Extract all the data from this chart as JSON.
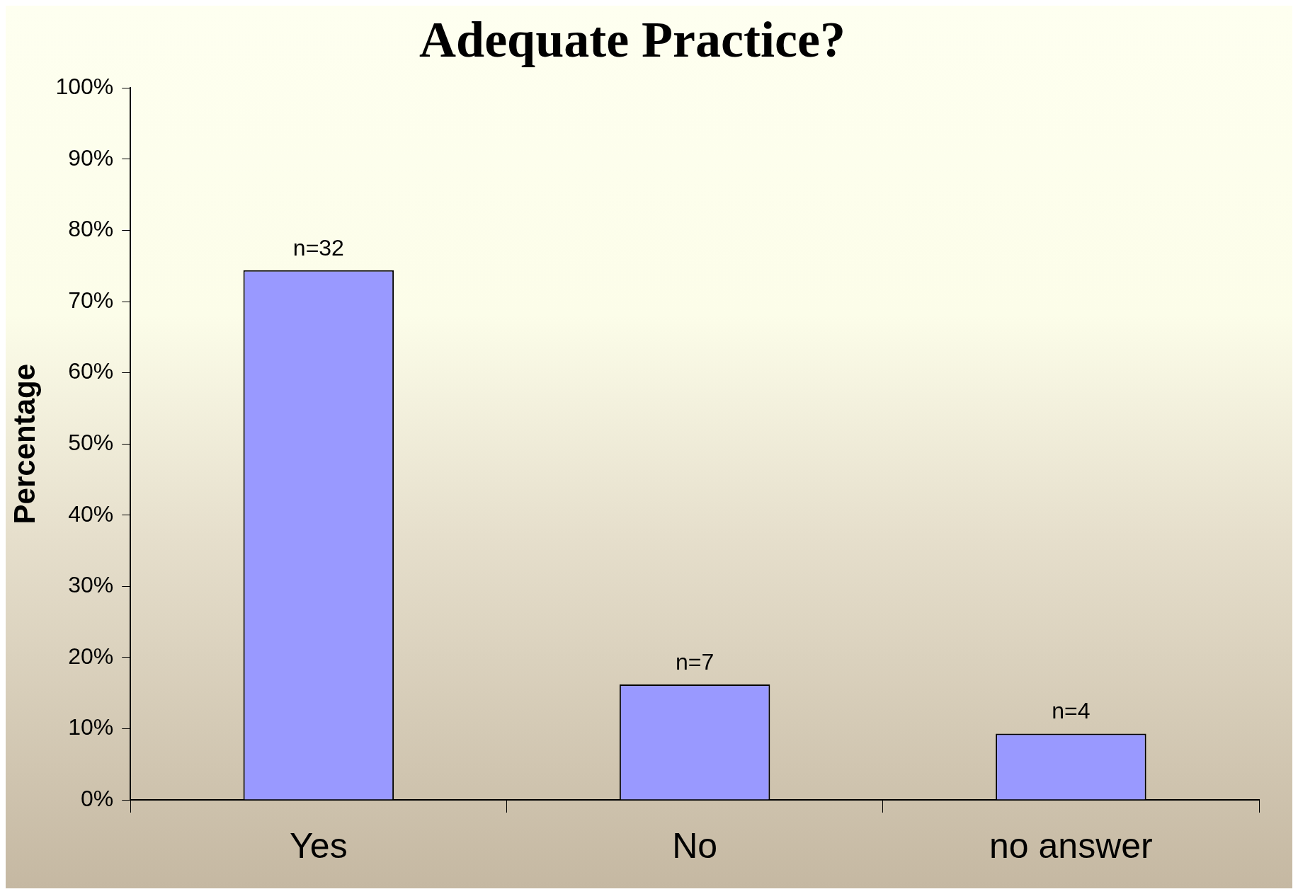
{
  "chart_data": {
    "type": "bar",
    "title": "Adequate Practice?",
    "ylabel": "Percentage",
    "categories": [
      "Yes",
      "No",
      "no answer"
    ],
    "values": [
      74.4,
      16.2,
      9.3
    ],
    "annotations": [
      {
        "text": "n=32",
        "x": "Yes",
        "y": 74.4
      },
      {
        "text": "n=7",
        "x": "No",
        "y": 16.2
      },
      {
        "text": "n=4",
        "x": "no answer",
        "y": 9.3
      }
    ],
    "color": "#9999ff",
    "ylim": [
      0,
      100
    ],
    "yticks": [
      {
        "value": 0,
        "label": "0%"
      },
      {
        "value": 10,
        "label": "10%"
      },
      {
        "value": 20,
        "label": "20%"
      },
      {
        "value": 30,
        "label": "30%"
      },
      {
        "value": 40,
        "label": "40%"
      },
      {
        "value": 50,
        "label": "50%"
      },
      {
        "value": 60,
        "label": "60%"
      },
      {
        "value": 70,
        "label": "70%"
      },
      {
        "value": 80,
        "label": "80%"
      },
      {
        "value": 90,
        "label": "90%"
      },
      {
        "value": 100,
        "label": "100%"
      }
    ],
    "grid": false,
    "legend": false
  }
}
